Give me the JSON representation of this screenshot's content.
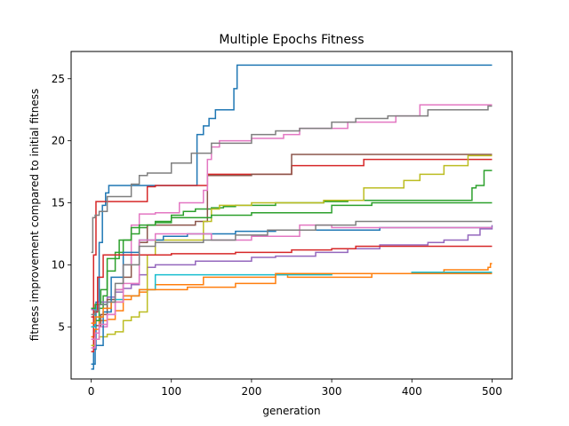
{
  "chart_data": {
    "type": "line",
    "title": "Multiple Epochs Fitness",
    "xlabel": "generation",
    "ylabel": "fitness improvement compared to initial fitness",
    "xlim": [
      -25,
      525
    ],
    "ylim": [
      0.8,
      27.2
    ],
    "xticks": [
      0,
      100,
      200,
      300,
      400,
      500
    ],
    "yticks": [
      5,
      10,
      15,
      20,
      25
    ],
    "grid": false,
    "legend": "none",
    "series": [
      {
        "color": "#1f77b4",
        "x": [
          0,
          3,
          6,
          10,
          14,
          18,
          22,
          120,
          132,
          140,
          147,
          155,
          178,
          182,
          500
        ],
        "y": [
          1.6,
          3.2,
          7.0,
          11.8,
          14.8,
          15.8,
          16.4,
          16.4,
          20.5,
          21.2,
          21.8,
          22.5,
          24.2,
          26.1,
          26.1
        ]
      },
      {
        "color": "#ff7f0e",
        "x": [
          0,
          4,
          10,
          20,
          30,
          40,
          50,
          60,
          70,
          80,
          140,
          230,
          245,
          350,
          440,
          495,
          498,
          500
        ],
        "y": [
          4.2,
          4.8,
          5.5,
          5.6,
          6.3,
          7.2,
          7.5,
          7.8,
          8.0,
          8.4,
          9.0,
          9.2,
          9.0,
          9.3,
          9.6,
          9.8,
          10.1,
          10.1
        ]
      },
      {
        "color": "#2ca02c",
        "x": [
          0,
          5,
          10,
          15,
          20,
          30,
          40,
          50,
          60,
          70,
          80,
          100,
          115,
          130,
          150,
          165,
          180,
          230,
          290,
          320,
          395,
          450,
          475,
          480,
          490,
          500
        ],
        "y": [
          5.0,
          5.5,
          6.5,
          7.5,
          9.5,
          11.0,
          12.0,
          12.5,
          13.0,
          13.2,
          13.5,
          14.0,
          14.3,
          14.5,
          14.6,
          14.7,
          14.8,
          15.0,
          15.1,
          15.2,
          15.2,
          15.2,
          16.2,
          16.4,
          17.6,
          17.6
        ]
      },
      {
        "color": "#d62728",
        "x": [
          0,
          3,
          6,
          10,
          14,
          20,
          50,
          70,
          80,
          145,
          250,
          340,
          500
        ],
        "y": [
          3.0,
          10.8,
          15.1,
          15.1,
          15.1,
          15.1,
          15.1,
          16.3,
          16.4,
          17.3,
          18.0,
          18.5,
          18.5
        ]
      },
      {
        "color": "#9467bd",
        "x": [
          0,
          5,
          10,
          20,
          30,
          40,
          50,
          60,
          70,
          80,
          130,
          200,
          230,
          280,
          320,
          360,
          420,
          440,
          470,
          485,
          500
        ],
        "y": [
          6.4,
          6.5,
          7.0,
          7.4,
          7.8,
          8.1,
          8.4,
          9.2,
          9.8,
          10.0,
          10.3,
          10.6,
          10.7,
          11.0,
          11.3,
          11.6,
          11.8,
          12.0,
          12.4,
          12.9,
          13.2
        ]
      },
      {
        "color": "#8c564b",
        "x": [
          0,
          5,
          12,
          20,
          30,
          40,
          50,
          60,
          70,
          130,
          145,
          200,
          250,
          255,
          500
        ],
        "y": [
          5.0,
          5.1,
          6.0,
          7.2,
          8.0,
          9.0,
          10.8,
          11.8,
          13.2,
          13.5,
          17.2,
          17.3,
          18.9,
          18.9,
          18.9
        ]
      },
      {
        "color": "#e377c2",
        "x": [
          0,
          5,
          10,
          20,
          30,
          40,
          50,
          60,
          80,
          110,
          140,
          145,
          150,
          160,
          200,
          240,
          260,
          320,
          380,
          410,
          500
        ],
        "y": [
          4.0,
          4.5,
          5.0,
          6.0,
          8.0,
          10.0,
          13.2,
          14.1,
          14.2,
          15.0,
          16.0,
          18.5,
          19.5,
          20.0,
          20.2,
          20.5,
          21.0,
          21.5,
          22.0,
          22.9,
          22.9
        ]
      },
      {
        "color": "#7f7f7f",
        "x": [
          0,
          2,
          5,
          10,
          20,
          50,
          60,
          70,
          100,
          125,
          150,
          200,
          230,
          260,
          300,
          330,
          370,
          420,
          495,
          500
        ],
        "y": [
          11.0,
          13.8,
          14.0,
          14.3,
          15.5,
          16.5,
          17.2,
          17.4,
          18.2,
          19.0,
          19.8,
          20.5,
          20.8,
          21.0,
          21.5,
          21.8,
          22.0,
          22.5,
          22.8,
          22.8
        ]
      },
      {
        "color": "#bcbd22",
        "x": [
          0,
          5,
          10,
          20,
          30,
          40,
          50,
          60,
          70,
          80,
          140,
          150,
          160,
          200,
          290,
          340,
          390,
          410,
          440,
          470,
          500
        ],
        "y": [
          3.5,
          4.0,
          4.2,
          4.4,
          4.6,
          5.5,
          5.8,
          6.2,
          10.8,
          12.0,
          13.5,
          14.5,
          14.8,
          15.0,
          15.2,
          16.2,
          16.8,
          17.3,
          18.0,
          18.8,
          18.8
        ]
      },
      {
        "color": "#17becf",
        "x": [
          0,
          5,
          10,
          20,
          30,
          40,
          60,
          80,
          120,
          200,
          300,
          400,
          500
        ],
        "y": [
          5.0,
          6.5,
          6.8,
          7.0,
          7.2,
          7.5,
          8.0,
          9.2,
          9.2,
          9.2,
          9.3,
          9.4,
          9.4
        ]
      },
      {
        "color": "#1f77b4",
        "x": [
          0,
          5,
          15,
          25,
          40,
          60,
          90,
          120,
          180,
          230,
          300,
          340,
          360,
          420,
          500
        ],
        "y": [
          2.0,
          3.5,
          6.2,
          9.0,
          11.0,
          12.0,
          12.3,
          12.5,
          12.7,
          12.8,
          12.8,
          12.8,
          13.0,
          13.0,
          13.0
        ]
      },
      {
        "color": "#ff7f0e",
        "x": [
          0,
          5,
          15,
          25,
          40,
          60,
          90,
          120,
          180,
          230,
          300,
          400,
          495,
          500
        ],
        "y": [
          5.3,
          5.8,
          6.5,
          7.0,
          7.5,
          8.0,
          8.0,
          8.2,
          8.5,
          9.3,
          9.3,
          9.3,
          9.3,
          9.3
        ]
      },
      {
        "color": "#2ca02c",
        "x": [
          0,
          5,
          12,
          20,
          35,
          50,
          60,
          80,
          100,
          150,
          200,
          300,
          350,
          420,
          450,
          500
        ],
        "y": [
          6.5,
          6.8,
          8.0,
          10.5,
          12.0,
          13.0,
          13.2,
          13.4,
          13.8,
          14.0,
          14.2,
          14.8,
          15.0,
          15.0,
          15.0,
          15.0
        ]
      },
      {
        "color": "#d62728",
        "x": [
          0,
          3,
          8,
          15,
          30,
          60,
          100,
          180,
          250,
          300,
          330,
          420,
          500
        ],
        "y": [
          5.8,
          6.2,
          9.0,
          10.8,
          10.8,
          10.8,
          10.9,
          11.0,
          11.2,
          11.3,
          11.5,
          11.5,
          11.5
        ]
      },
      {
        "color": "#e377c2",
        "x": [
          0,
          5,
          10,
          20,
          30,
          40,
          60,
          80,
          150,
          200,
          260,
          300,
          350,
          400,
          460,
          500
        ],
        "y": [
          3.3,
          4.0,
          5.2,
          6.0,
          7.0,
          8.5,
          12.0,
          12.5,
          12.0,
          12.3,
          13.2,
          13.0,
          13.0,
          13.0,
          13.0,
          13.0
        ]
      },
      {
        "color": "#7f7f7f",
        "x": [
          0,
          5,
          10,
          20,
          30,
          40,
          60,
          80,
          140,
          180,
          220,
          280,
          330,
          400,
          500
        ],
        "y": [
          6.0,
          6.3,
          6.8,
          7.0,
          8.5,
          10.0,
          11.5,
          11.8,
          12.0,
          12.4,
          12.8,
          13.2,
          13.5,
          13.5,
          13.5
        ]
      }
    ]
  }
}
